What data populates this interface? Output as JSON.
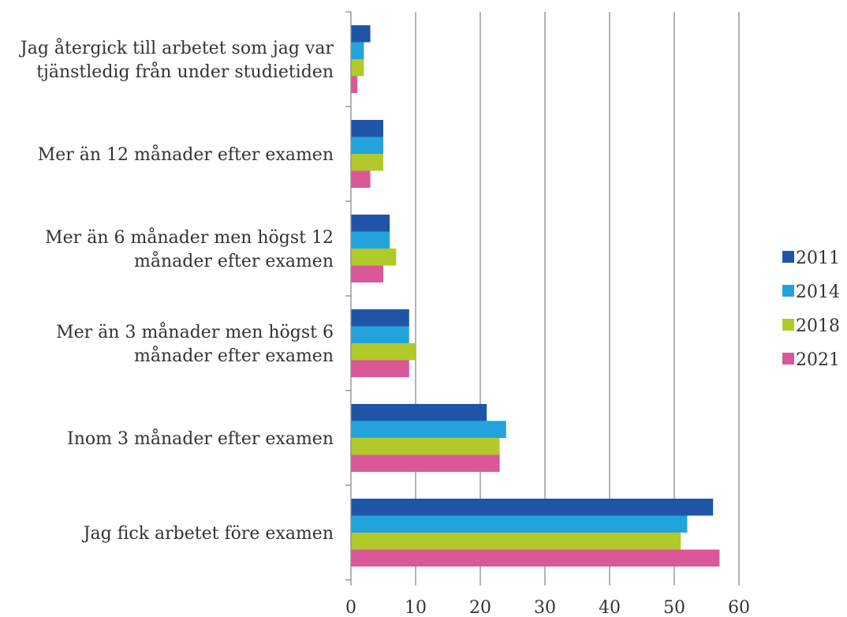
{
  "chart_data": {
    "type": "bar",
    "orientation": "horizontal",
    "title": "",
    "xlabel": "",
    "ylabel": "",
    "xlim": [
      0,
      60
    ],
    "ticks": [
      0,
      10,
      20,
      30,
      40,
      50,
      60
    ],
    "grid": true,
    "legend_position": "right",
    "categories": [
      [
        "Jag återgick till arbetet som jag var",
        "tjänstledig från under studietiden"
      ],
      [
        "Mer än 12 månader efter examen"
      ],
      [
        "Mer än 6 månader men högst 12",
        "månader efter examen"
      ],
      [
        "Mer än 3 månader men högst 6",
        "månader efter examen"
      ],
      [
        "Inom 3 månader efter examen"
      ],
      [
        "Jag fick arbetet före examen"
      ]
    ],
    "series": [
      {
        "name": "2011",
        "color": "#1f55a8",
        "values": [
          3,
          5,
          6,
          9,
          21,
          56
        ]
      },
      {
        "name": "2014",
        "color": "#22a3de",
        "values": [
          2,
          5,
          6,
          9,
          24,
          52
        ]
      },
      {
        "name": "2018",
        "color": "#b1c92b",
        "values": [
          2,
          5,
          7,
          10,
          23,
          51
        ]
      },
      {
        "name": "2021",
        "color": "#db5898",
        "values": [
          1,
          3,
          5,
          9,
          23,
          57
        ]
      }
    ]
  }
}
